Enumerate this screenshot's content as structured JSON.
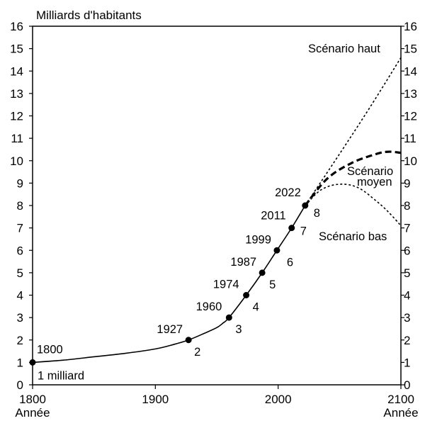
{
  "chart_data": {
    "type": "line",
    "title": "Milliards d'habitants",
    "xlabel": "Année",
    "ylabel": "Milliards d'habitants",
    "xlim": [
      1800,
      2100
    ],
    "ylim": [
      0,
      16
    ],
    "x_ticks": [
      "1800",
      "1900",
      "2000",
      "2100"
    ],
    "y_ticks": [
      "0",
      "1",
      "2",
      "3",
      "4",
      "5",
      "6",
      "7",
      "8",
      "9",
      "10",
      "11",
      "12",
      "13",
      "14",
      "15",
      "16"
    ],
    "grid": false,
    "series": [
      {
        "name": "",
        "style": "solid",
        "x": [
          1800,
          1825,
          1850,
          1875,
          1900,
          1915,
          1927,
          1940,
          1950,
          1955,
          1960,
          1974,
          1987,
          1999,
          2011,
          2022
        ],
        "y": [
          1.0,
          1.1,
          1.25,
          1.4,
          1.6,
          1.8,
          2.0,
          2.3,
          2.55,
          2.75,
          3.0,
          4.0,
          5.0,
          6.0,
          7.0,
          8.0
        ]
      },
      {
        "name": "Scénario haut",
        "style": "dotted",
        "x": [
          2022,
          2050,
          2075,
          2100
        ],
        "y": [
          8.0,
          10.3,
          12.4,
          14.6
        ]
      },
      {
        "name": "Scénario moyen",
        "style": "dashed",
        "x": [
          2022,
          2040,
          2060,
          2080,
          2090,
          2100
        ],
        "y": [
          8.0,
          9.2,
          9.9,
          10.3,
          10.4,
          10.35
        ]
      },
      {
        "name": "Scénario bas",
        "style": "dotted",
        "x": [
          2022,
          2035,
          2050,
          2065,
          2080,
          2090,
          2100
        ],
        "y": [
          8.0,
          8.7,
          8.95,
          8.8,
          8.2,
          7.7,
          7.1
        ]
      }
    ],
    "milestones": [
      {
        "year": 1800,
        "value": 1,
        "year_label": "1800",
        "value_label": "1 milliard"
      },
      {
        "year": 1927,
        "value": 2,
        "year_label": "1927",
        "value_label": "2"
      },
      {
        "year": 1960,
        "value": 3,
        "year_label": "1960",
        "value_label": "3"
      },
      {
        "year": 1974,
        "value": 4,
        "year_label": "1974",
        "value_label": "4"
      },
      {
        "year": 1987,
        "value": 5,
        "year_label": "1987",
        "value_label": "5"
      },
      {
        "year": 1999,
        "value": 6,
        "year_label": "1999",
        "value_label": "6"
      },
      {
        "year": 2011,
        "value": 7,
        "year_label": "2011",
        "value_label": "7"
      },
      {
        "year": 2022,
        "value": 8,
        "year_label": "2022",
        "value_label": "8"
      }
    ],
    "annotations": {
      "haut": "Scénario haut",
      "moyen_line1": "Scénario",
      "moyen_line2": "moyen",
      "bas": "Scénario bas"
    }
  }
}
